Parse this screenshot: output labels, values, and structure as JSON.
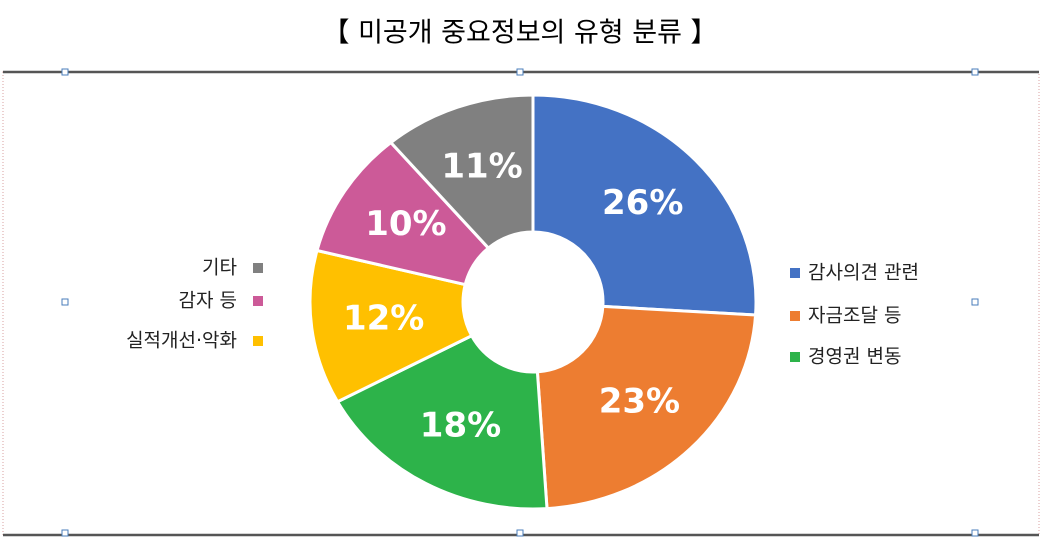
{
  "chart_data": {
    "type": "donut",
    "title": "【 미공개 중요정보의 유형 분류 】",
    "categories": [
      "감사의견 관련",
      "자금조달 등",
      "경영권 변동",
      "실적개선·악화",
      "감자 등",
      "기타"
    ],
    "values": [
      26,
      23,
      18,
      12,
      10,
      11
    ],
    "value_labels": [
      "26%",
      "23%",
      "18%",
      "12%",
      "10%",
      "11%"
    ],
    "colors": [
      "#4472c4",
      "#ed7d31",
      "#2db34a",
      "#ffc000",
      "#cc5a98",
      "#808080"
    ]
  }
}
